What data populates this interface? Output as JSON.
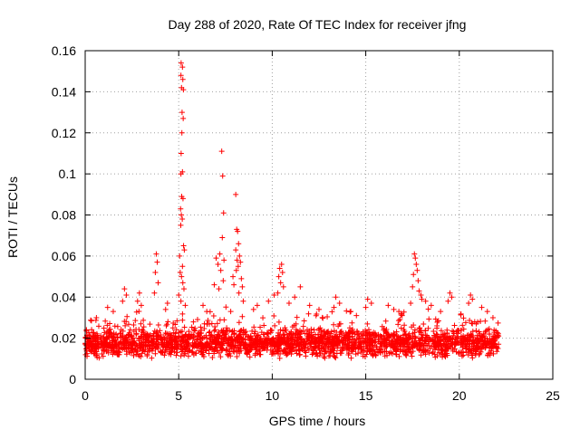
{
  "chart_data": {
    "type": "scatter",
    "title": "Day 288 of 2020, Rate Of TEC Index for receiver jfng",
    "xlabel": "GPS time / hours",
    "ylabel": "ROTI / TECUs",
    "xlim": [
      0,
      25
    ],
    "ylim": [
      0,
      0.16
    ],
    "x_ticks": [
      0,
      5,
      10,
      15,
      20,
      25
    ],
    "x_tick_labels": [
      "0",
      "5",
      "10",
      "15",
      "20",
      "25"
    ],
    "y_ticks": [
      0,
      0.02,
      0.04,
      0.06,
      0.08,
      0.1,
      0.12,
      0.14,
      0.16
    ],
    "y_tick_labels": [
      "0",
      "0.02",
      "0.04",
      "0.06",
      "0.08",
      "0.1",
      "0.12",
      "0.14",
      "0.16"
    ],
    "grid": true,
    "marker": "+",
    "series_color": "#ff0000",
    "time_range_hours": [
      0,
      22.1
    ],
    "baseline_band": [
      0.005,
      0.025
    ],
    "series": [
      {
        "name": "ROTI",
        "points": [
          [
            5.13,
            0.154
          ],
          [
            5.2,
            0.152
          ],
          [
            5.12,
            0.148
          ],
          [
            5.22,
            0.146
          ],
          [
            5.15,
            0.142
          ],
          [
            5.25,
            0.141
          ],
          [
            5.18,
            0.13
          ],
          [
            5.24,
            0.127
          ],
          [
            5.17,
            0.12
          ],
          [
            5.13,
            0.11
          ],
          [
            5.2,
            0.101
          ],
          [
            5.12,
            0.1
          ],
          [
            5.16,
            0.089
          ],
          [
            5.23,
            0.088
          ],
          [
            5.1,
            0.083
          ],
          [
            5.14,
            0.08
          ],
          [
            5.19,
            0.078
          ],
          [
            5.11,
            0.075
          ],
          [
            5.26,
            0.065
          ],
          [
            5.3,
            0.063
          ],
          [
            5.05,
            0.06
          ],
          [
            5.2,
            0.055
          ],
          [
            5.08,
            0.052
          ],
          [
            5.15,
            0.05
          ],
          [
            5.22,
            0.047
          ],
          [
            5.28,
            0.044
          ],
          [
            5.0,
            0.041
          ],
          [
            5.12,
            0.038
          ],
          [
            5.35,
            0.036
          ],
          [
            7.3,
            0.111
          ],
          [
            7.35,
            0.099
          ],
          [
            7.4,
            0.081
          ],
          [
            7.33,
            0.069
          ],
          [
            7.2,
            0.061
          ],
          [
            7.42,
            0.058
          ],
          [
            7.0,
            0.059
          ],
          [
            7.1,
            0.056
          ],
          [
            7.25,
            0.053
          ],
          [
            7.38,
            0.048
          ],
          [
            7.15,
            0.044
          ],
          [
            6.9,
            0.046
          ],
          [
            8.05,
            0.09
          ],
          [
            8.1,
            0.073
          ],
          [
            8.15,
            0.072
          ],
          [
            8.2,
            0.066
          ],
          [
            8.05,
            0.063
          ],
          [
            8.25,
            0.06
          ],
          [
            8.12,
            0.058
          ],
          [
            8.3,
            0.057
          ],
          [
            8.18,
            0.055
          ],
          [
            8.08,
            0.053
          ],
          [
            8.35,
            0.049
          ],
          [
            7.9,
            0.05
          ],
          [
            7.95,
            0.046
          ],
          [
            8.4,
            0.045
          ],
          [
            8.22,
            0.042
          ],
          [
            8.45,
            0.038
          ],
          [
            3.8,
            0.061
          ],
          [
            3.85,
            0.057
          ],
          [
            3.75,
            0.052
          ],
          [
            3.9,
            0.047
          ],
          [
            3.7,
            0.042
          ],
          [
            10.5,
            0.056
          ],
          [
            10.4,
            0.054
          ],
          [
            10.55,
            0.052
          ],
          [
            10.35,
            0.05
          ],
          [
            10.45,
            0.047
          ],
          [
            10.6,
            0.045
          ],
          [
            10.3,
            0.042
          ],
          [
            10.1,
            0.041
          ],
          [
            11.5,
            0.045
          ],
          [
            11.2,
            0.04
          ],
          [
            9.8,
            0.038
          ],
          [
            10.9,
            0.037
          ],
          [
            12.0,
            0.036
          ],
          [
            12.5,
            0.034
          ],
          [
            17.6,
            0.061
          ],
          [
            17.65,
            0.059
          ],
          [
            17.7,
            0.056
          ],
          [
            17.75,
            0.053
          ],
          [
            17.55,
            0.051
          ],
          [
            17.8,
            0.048
          ],
          [
            17.5,
            0.045
          ],
          [
            17.85,
            0.043
          ],
          [
            17.95,
            0.041
          ],
          [
            18.2,
            0.038
          ],
          [
            17.4,
            0.037
          ],
          [
            18.5,
            0.036
          ],
          [
            18.0,
            0.039
          ],
          [
            13.4,
            0.04
          ],
          [
            13.6,
            0.037
          ],
          [
            13.3,
            0.035
          ],
          [
            15.1,
            0.039
          ],
          [
            15.3,
            0.037
          ],
          [
            15.0,
            0.035
          ],
          [
            16.2,
            0.036
          ],
          [
            16.5,
            0.034
          ],
          [
            19.5,
            0.042
          ],
          [
            19.6,
            0.04
          ],
          [
            19.4,
            0.038
          ],
          [
            20.6,
            0.041
          ],
          [
            20.7,
            0.039
          ],
          [
            20.5,
            0.037
          ],
          [
            21.2,
            0.035
          ],
          [
            21.5,
            0.033
          ],
          [
            2.1,
            0.044
          ],
          [
            2.2,
            0.041
          ],
          [
            2.0,
            0.038
          ],
          [
            2.9,
            0.042
          ],
          [
            2.8,
            0.038
          ],
          [
            3.0,
            0.036
          ],
          [
            4.4,
            0.037
          ],
          [
            4.3,
            0.034
          ],
          [
            1.2,
            0.035
          ],
          [
            1.5,
            0.033
          ],
          [
            0.6,
            0.03
          ],
          [
            6.3,
            0.036
          ],
          [
            6.5,
            0.033
          ],
          [
            9.2,
            0.036
          ],
          [
            9.0,
            0.034
          ],
          [
            14.2,
            0.033
          ],
          [
            14.5,
            0.031
          ],
          [
            16.9,
            0.032
          ],
          [
            19.0,
            0.033
          ],
          [
            21.8,
            0.03
          ]
        ]
      }
    ]
  }
}
